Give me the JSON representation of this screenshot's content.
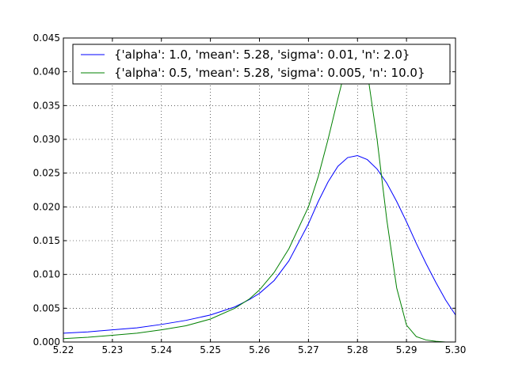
{
  "chart_data": {
    "type": "line",
    "title": "",
    "xlabel": "",
    "ylabel": "",
    "xlim": [
      5.22,
      5.3
    ],
    "ylim": [
      0.0,
      0.045
    ],
    "grid": true,
    "legend_position": "top",
    "x_ticks": [
      "5.22",
      "5.23",
      "5.24",
      "5.25",
      "5.26",
      "5.27",
      "5.28",
      "5.29",
      "5.30"
    ],
    "y_ticks": [
      "0.000",
      "0.005",
      "0.010",
      "0.015",
      "0.020",
      "0.025",
      "0.030",
      "0.035",
      "0.040",
      "0.045"
    ],
    "x": [
      5.22,
      5.225,
      5.23,
      5.235,
      5.24,
      5.245,
      5.25,
      5.255,
      5.258,
      5.26,
      5.263,
      5.266,
      5.27,
      5.272,
      5.274,
      5.276,
      5.278,
      5.28,
      5.282,
      5.284,
      5.286,
      5.288,
      5.29,
      5.292,
      5.294,
      5.296,
      5.298,
      5.3
    ],
    "series": [
      {
        "name": "{'alpha': 1.0, 'mean': 5.28, 'sigma': 0.01, 'n': 2.0}",
        "color": "#0000ff",
        "values": [
          0.0013,
          0.0015,
          0.0018,
          0.0021,
          0.0026,
          0.0032,
          0.004,
          0.0052,
          0.0063,
          0.0072,
          0.0091,
          0.012,
          0.0175,
          0.0208,
          0.0237,
          0.026,
          0.0273,
          0.0276,
          0.027,
          0.0256,
          0.0235,
          0.0208,
          0.0178,
          0.0146,
          0.0116,
          0.0088,
          0.0062,
          0.004
        ]
      },
      {
        "name": "{'alpha': 0.5, 'mean': 5.28, 'sigma': 0.005, 'n': 10.0}",
        "color": "#008000",
        "values": [
          0.0005,
          0.0007,
          0.001,
          0.0013,
          0.0018,
          0.0024,
          0.0034,
          0.005,
          0.0064,
          0.0077,
          0.0103,
          0.0138,
          0.02,
          0.0245,
          0.03,
          0.036,
          0.0418,
          0.044,
          0.04,
          0.03,
          0.018,
          0.008,
          0.0025,
          0.0008,
          0.0003,
          0.0001,
          0.0,
          0.0
        ]
      }
    ]
  }
}
